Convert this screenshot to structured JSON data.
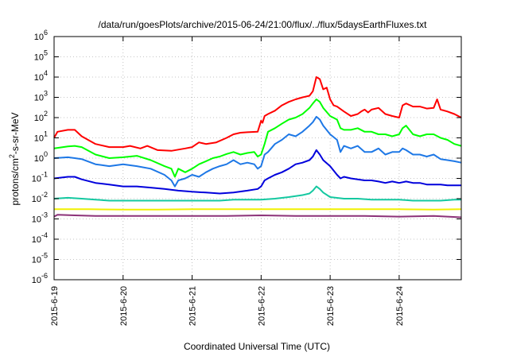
{
  "chart_data": {
    "type": "line",
    "title": "/data/run/goesPlots/archive/2015-06-24/21:00/flux/../flux/5daysEarthFluxes.txt",
    "xlabel": "Coordinated Universal Time (UTC)",
    "ylabel": {
      "prefix": "protons/cm",
      "sup": "2",
      "suffix": "-s-sr-MeV"
    },
    "yscale": "log",
    "ylim": [
      1e-06,
      1000000.0
    ],
    "y_tick_exponents": [
      -6,
      -5,
      -4,
      -3,
      -2,
      -1,
      0,
      1,
      2,
      3,
      4,
      5,
      6
    ],
    "y_tick_base": "10",
    "xlim": [
      0,
      5.9
    ],
    "x_ticks": [
      {
        "value": 0,
        "label": "2015-6-19"
      },
      {
        "value": 1,
        "label": "2015-6-20"
      },
      {
        "value": 2,
        "label": "2015-6-21"
      },
      {
        "value": 3,
        "label": "2015-6-22"
      },
      {
        "value": 4,
        "label": "2015-6-23"
      },
      {
        "value": 5,
        "label": "2015-6-24"
      }
    ],
    "grid": true,
    "series": [
      {
        "color": "#ff0000",
        "points": [
          [
            0,
            10
          ],
          [
            0.05,
            20
          ],
          [
            0.2,
            25
          ],
          [
            0.3,
            25
          ],
          [
            0.4,
            12
          ],
          [
            0.6,
            5
          ],
          [
            0.8,
            3.5
          ],
          [
            1.0,
            3.5
          ],
          [
            1.1,
            4
          ],
          [
            1.25,
            3
          ],
          [
            1.35,
            4
          ],
          [
            1.5,
            2.5
          ],
          [
            1.7,
            2.3
          ],
          [
            1.9,
            3
          ],
          [
            2.0,
            3.5
          ],
          [
            2.1,
            6
          ],
          [
            2.2,
            5
          ],
          [
            2.35,
            6
          ],
          [
            2.5,
            10
          ],
          [
            2.6,
            15
          ],
          [
            2.7,
            18
          ],
          [
            2.8,
            19
          ],
          [
            2.95,
            20
          ],
          [
            3.0,
            70
          ],
          [
            3.02,
            55
          ],
          [
            3.05,
            120
          ],
          [
            3.1,
            150
          ],
          [
            3.2,
            220
          ],
          [
            3.3,
            400
          ],
          [
            3.4,
            600
          ],
          [
            3.5,
            800
          ],
          [
            3.6,
            1000
          ],
          [
            3.7,
            1200
          ],
          [
            3.75,
            2000
          ],
          [
            3.8,
            10000
          ],
          [
            3.85,
            8000
          ],
          [
            3.9,
            2500
          ],
          [
            3.95,
            3000
          ],
          [
            4.0,
            800
          ],
          [
            4.05,
            400
          ],
          [
            4.1,
            350
          ],
          [
            4.2,
            200
          ],
          [
            4.3,
            120
          ],
          [
            4.4,
            150
          ],
          [
            4.45,
            200
          ],
          [
            4.5,
            250
          ],
          [
            4.55,
            180
          ],
          [
            4.6,
            250
          ],
          [
            4.7,
            300
          ],
          [
            4.8,
            150
          ],
          [
            4.9,
            120
          ],
          [
            5.0,
            100
          ],
          [
            5.05,
            400
          ],
          [
            5.1,
            500
          ],
          [
            5.2,
            350
          ],
          [
            5.3,
            350
          ],
          [
            5.4,
            280
          ],
          [
            5.5,
            300
          ],
          [
            5.55,
            800
          ],
          [
            5.6,
            250
          ],
          [
            5.7,
            200
          ],
          [
            5.8,
            150
          ],
          [
            5.9,
            100
          ]
        ]
      },
      {
        "color": "#00ff00",
        "points": [
          [
            0,
            3
          ],
          [
            0.2,
            3.8
          ],
          [
            0.3,
            4
          ],
          [
            0.4,
            3.5
          ],
          [
            0.6,
            1.5
          ],
          [
            0.8,
            1
          ],
          [
            1.0,
            1.1
          ],
          [
            1.2,
            1.3
          ],
          [
            1.4,
            0.8
          ],
          [
            1.6,
            0.4
          ],
          [
            1.7,
            0.3
          ],
          [
            1.75,
            0.12
          ],
          [
            1.8,
            0.3
          ],
          [
            1.9,
            0.2
          ],
          [
            2.0,
            0.3
          ],
          [
            2.1,
            0.5
          ],
          [
            2.2,
            0.7
          ],
          [
            2.3,
            1
          ],
          [
            2.4,
            1.2
          ],
          [
            2.5,
            1.6
          ],
          [
            2.6,
            2
          ],
          [
            2.7,
            1.5
          ],
          [
            2.8,
            1.8
          ],
          [
            2.9,
            2
          ],
          [
            2.95,
            1.2
          ],
          [
            3.0,
            1.5
          ],
          [
            3.05,
            5
          ],
          [
            3.1,
            20
          ],
          [
            3.2,
            30
          ],
          [
            3.3,
            50
          ],
          [
            3.4,
            80
          ],
          [
            3.5,
            100
          ],
          [
            3.6,
            150
          ],
          [
            3.7,
            300
          ],
          [
            3.75,
            500
          ],
          [
            3.8,
            800
          ],
          [
            3.85,
            600
          ],
          [
            3.9,
            300
          ],
          [
            4.0,
            120
          ],
          [
            4.1,
            80
          ],
          [
            4.15,
            30
          ],
          [
            4.2,
            25
          ],
          [
            4.3,
            25
          ],
          [
            4.4,
            30
          ],
          [
            4.5,
            20
          ],
          [
            4.6,
            20
          ],
          [
            4.7,
            15
          ],
          [
            4.8,
            15
          ],
          [
            4.9,
            12
          ],
          [
            5.0,
            15
          ],
          [
            5.05,
            30
          ],
          [
            5.1,
            40
          ],
          [
            5.2,
            15
          ],
          [
            5.3,
            12
          ],
          [
            5.4,
            15
          ],
          [
            5.5,
            15
          ],
          [
            5.6,
            10
          ],
          [
            5.7,
            8
          ],
          [
            5.8,
            5
          ],
          [
            5.9,
            4
          ]
        ]
      },
      {
        "color": "#1e78e6",
        "points": [
          [
            0,
            1
          ],
          [
            0.2,
            1.1
          ],
          [
            0.3,
            1
          ],
          [
            0.4,
            0.9
          ],
          [
            0.6,
            0.5
          ],
          [
            0.8,
            0.4
          ],
          [
            1.0,
            0.5
          ],
          [
            1.2,
            0.4
          ],
          [
            1.4,
            0.3
          ],
          [
            1.6,
            0.15
          ],
          [
            1.7,
            0.08
          ],
          [
            1.75,
            0.04
          ],
          [
            1.8,
            0.08
          ],
          [
            1.9,
            0.1
          ],
          [
            2.0,
            0.15
          ],
          [
            2.1,
            0.12
          ],
          [
            2.2,
            0.2
          ],
          [
            2.3,
            0.3
          ],
          [
            2.4,
            0.4
          ],
          [
            2.5,
            0.5
          ],
          [
            2.6,
            0.8
          ],
          [
            2.7,
            0.5
          ],
          [
            2.8,
            0.6
          ],
          [
            2.9,
            0.5
          ],
          [
            2.95,
            0.3
          ],
          [
            3.0,
            0.4
          ],
          [
            3.05,
            1.5
          ],
          [
            3.1,
            2
          ],
          [
            3.2,
            5
          ],
          [
            3.3,
            8
          ],
          [
            3.4,
            15
          ],
          [
            3.5,
            12
          ],
          [
            3.6,
            20
          ],
          [
            3.7,
            40
          ],
          [
            3.75,
            60
          ],
          [
            3.8,
            110
          ],
          [
            3.85,
            80
          ],
          [
            3.9,
            40
          ],
          [
            4.0,
            15
          ],
          [
            4.1,
            8
          ],
          [
            4.15,
            2
          ],
          [
            4.2,
            4
          ],
          [
            4.3,
            3
          ],
          [
            4.4,
            4
          ],
          [
            4.5,
            2
          ],
          [
            4.6,
            2
          ],
          [
            4.7,
            3
          ],
          [
            4.8,
            1.5
          ],
          [
            4.9,
            2
          ],
          [
            5.0,
            2
          ],
          [
            5.05,
            3
          ],
          [
            5.1,
            2.5
          ],
          [
            5.2,
            1.5
          ],
          [
            5.3,
            1.5
          ],
          [
            5.4,
            1.2
          ],
          [
            5.5,
            1.5
          ],
          [
            5.6,
            0.9
          ],
          [
            5.7,
            0.8
          ],
          [
            5.8,
            0.7
          ],
          [
            5.9,
            0.6
          ]
        ]
      },
      {
        "color": "#0000dc",
        "points": [
          [
            0,
            0.1
          ],
          [
            0.2,
            0.12
          ],
          [
            0.3,
            0.12
          ],
          [
            0.4,
            0.09
          ],
          [
            0.6,
            0.06
          ],
          [
            0.8,
            0.05
          ],
          [
            1.0,
            0.04
          ],
          [
            1.2,
            0.04
          ],
          [
            1.4,
            0.035
          ],
          [
            1.6,
            0.03
          ],
          [
            1.8,
            0.025
          ],
          [
            2.0,
            0.022
          ],
          [
            2.2,
            0.02
          ],
          [
            2.4,
            0.018
          ],
          [
            2.6,
            0.02
          ],
          [
            2.8,
            0.025
          ],
          [
            2.95,
            0.03
          ],
          [
            3.0,
            0.04
          ],
          [
            3.05,
            0.08
          ],
          [
            3.1,
            0.1
          ],
          [
            3.2,
            0.15
          ],
          [
            3.3,
            0.2
          ],
          [
            3.4,
            0.3
          ],
          [
            3.5,
            0.5
          ],
          [
            3.6,
            0.6
          ],
          [
            3.7,
            0.8
          ],
          [
            3.75,
            1.2
          ],
          [
            3.8,
            2.5
          ],
          [
            3.85,
            1.5
          ],
          [
            3.9,
            0.8
          ],
          [
            4.0,
            0.4
          ],
          [
            4.1,
            0.15
          ],
          [
            4.15,
            0.1
          ],
          [
            4.2,
            0.12
          ],
          [
            4.3,
            0.1
          ],
          [
            4.4,
            0.09
          ],
          [
            4.5,
            0.08
          ],
          [
            4.6,
            0.08
          ],
          [
            4.7,
            0.07
          ],
          [
            4.8,
            0.06
          ],
          [
            4.9,
            0.07
          ],
          [
            5.0,
            0.06
          ],
          [
            5.1,
            0.07
          ],
          [
            5.2,
            0.06
          ],
          [
            5.3,
            0.06
          ],
          [
            5.4,
            0.05
          ],
          [
            5.5,
            0.05
          ],
          [
            5.6,
            0.05
          ],
          [
            5.7,
            0.045
          ],
          [
            5.8,
            0.045
          ],
          [
            5.9,
            0.045
          ]
        ]
      },
      {
        "color": "#14c8a0",
        "points": [
          [
            0,
            0.01
          ],
          [
            0.2,
            0.011
          ],
          [
            0.4,
            0.01
          ],
          [
            0.6,
            0.009
          ],
          [
            0.8,
            0.008
          ],
          [
            1.0,
            0.008
          ],
          [
            1.2,
            0.008
          ],
          [
            1.4,
            0.008
          ],
          [
            1.6,
            0.008
          ],
          [
            1.8,
            0.008
          ],
          [
            2.0,
            0.008
          ],
          [
            2.2,
            0.008
          ],
          [
            2.4,
            0.008
          ],
          [
            2.6,
            0.009
          ],
          [
            2.8,
            0.009
          ],
          [
            3.0,
            0.009
          ],
          [
            3.2,
            0.01
          ],
          [
            3.4,
            0.012
          ],
          [
            3.6,
            0.015
          ],
          [
            3.7,
            0.018
          ],
          [
            3.75,
            0.025
          ],
          [
            3.8,
            0.04
          ],
          [
            3.85,
            0.03
          ],
          [
            3.9,
            0.02
          ],
          [
            4.0,
            0.012
          ],
          [
            4.2,
            0.01
          ],
          [
            4.4,
            0.01
          ],
          [
            4.6,
            0.009
          ],
          [
            4.8,
            0.009
          ],
          [
            5.0,
            0.009
          ],
          [
            5.2,
            0.008
          ],
          [
            5.4,
            0.008
          ],
          [
            5.6,
            0.008
          ],
          [
            5.8,
            0.009
          ],
          [
            5.9,
            0.009
          ]
        ]
      },
      {
        "color": "#f0f000",
        "points": [
          [
            0,
            0.003
          ],
          [
            0.5,
            0.003
          ],
          [
            1.0,
            0.0029
          ],
          [
            1.5,
            0.0029
          ],
          [
            2.0,
            0.003
          ],
          [
            2.5,
            0.003
          ],
          [
            3.0,
            0.003
          ],
          [
            3.5,
            0.003
          ],
          [
            4.0,
            0.003
          ],
          [
            4.5,
            0.003
          ],
          [
            5.0,
            0.003
          ],
          [
            5.5,
            0.0029
          ],
          [
            5.9,
            0.003
          ]
        ]
      },
      {
        "color": "#8c3278",
        "points": [
          [
            0,
            0.0013
          ],
          [
            0.05,
            0.0016
          ],
          [
            0.3,
            0.0015
          ],
          [
            0.6,
            0.0014
          ],
          [
            1.0,
            0.0014
          ],
          [
            1.5,
            0.0014
          ],
          [
            2.0,
            0.0014
          ],
          [
            2.5,
            0.0014
          ],
          [
            3.0,
            0.0015
          ],
          [
            3.5,
            0.0014
          ],
          [
            4.0,
            0.0014
          ],
          [
            4.5,
            0.0014
          ],
          [
            5.0,
            0.0013
          ],
          [
            5.5,
            0.0014
          ],
          [
            5.9,
            0.0012
          ]
        ]
      }
    ]
  }
}
